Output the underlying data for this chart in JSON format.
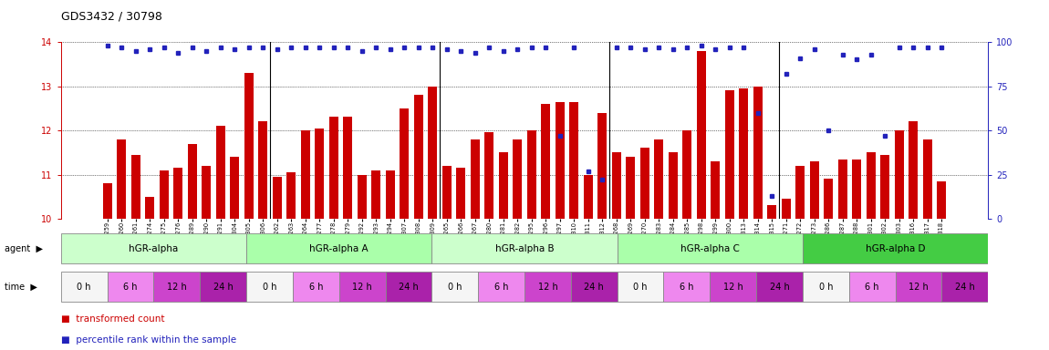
{
  "title": "GDS3432 / 30798",
  "x_labels": [
    "GSM154259",
    "GSM154260",
    "GSM154261",
    "GSM154274",
    "GSM154275",
    "GSM154276",
    "GSM154289",
    "GSM154290",
    "GSM154291",
    "GSM154304",
    "GSM154305",
    "GSM154306",
    "GSM154262",
    "GSM154263",
    "GSM154264",
    "GSM154277",
    "GSM154278",
    "GSM154279",
    "GSM154292",
    "GSM154293",
    "GSM154294",
    "GSM154307",
    "GSM154308",
    "GSM154309",
    "GSM154265",
    "GSM154266",
    "GSM154267",
    "GSM154280",
    "GSM154281",
    "GSM154282",
    "GSM154295",
    "GSM154296",
    "GSM154297",
    "GSM154310",
    "GSM154311",
    "GSM154312",
    "GSM154268",
    "GSM154269",
    "GSM154270",
    "GSM154283",
    "GSM154284",
    "GSM154285",
    "GSM154298",
    "GSM154299",
    "GSM154300",
    "GSM154313",
    "GSM154314",
    "GSM154315",
    "GSM154271",
    "GSM154272",
    "GSM154273",
    "GSM154286",
    "GSM154287",
    "GSM154288",
    "GSM154301",
    "GSM154302",
    "GSM154303",
    "GSM154316",
    "GSM154317",
    "GSM154318"
  ],
  "bar_values": [
    10.8,
    11.8,
    11.45,
    10.5,
    11.1,
    11.15,
    11.7,
    11.2,
    12.1,
    11.4,
    13.3,
    12.2,
    10.95,
    11.05,
    12.0,
    12.05,
    12.3,
    12.3,
    11.0,
    11.1,
    11.1,
    12.5,
    12.8,
    13.0,
    11.2,
    11.15,
    11.8,
    11.95,
    11.5,
    11.8,
    12.0,
    12.6,
    12.65,
    12.65,
    11.0,
    12.4,
    11.5,
    11.4,
    11.6,
    11.8,
    11.5,
    12.0,
    13.8,
    11.3,
    12.9,
    12.95,
    13.0,
    10.3,
    10.45,
    11.2,
    11.3,
    10.9,
    11.35,
    11.35,
    11.5,
    11.45,
    12.0,
    12.2,
    11.8,
    10.85
  ],
  "percentile_values": [
    98,
    97,
    95,
    96,
    97,
    94,
    97,
    95,
    97,
    96,
    97,
    97,
    96,
    97,
    97,
    97,
    97,
    97,
    95,
    97,
    96,
    97,
    97,
    97,
    96,
    95,
    94,
    97,
    95,
    96,
    97,
    97,
    47,
    97,
    27,
    22,
    97,
    97,
    96,
    97,
    96,
    97,
    98,
    96,
    97,
    97,
    60,
    13,
    82,
    91,
    96,
    50,
    93,
    90,
    93,
    47,
    97,
    97,
    97,
    97
  ],
  "ymin": 10,
  "ymax": 14,
  "yticks_left": [
    10,
    11,
    12,
    13,
    14
  ],
  "yticks_right": [
    0,
    25,
    50,
    75,
    100
  ],
  "bar_color": "#cc0000",
  "dot_color": "#2222bb",
  "agent_groups": [
    {
      "label": "hGR-alpha",
      "start": 0,
      "end": 12
    },
    {
      "label": "hGR-alpha A",
      "start": 12,
      "end": 24
    },
    {
      "label": "hGR-alpha B",
      "start": 24,
      "end": 36
    },
    {
      "label": "hGR-alpha C",
      "start": 36,
      "end": 48
    },
    {
      "label": "hGR-alpha D",
      "start": 48,
      "end": 60
    }
  ],
  "agent_colors": [
    "#ccffcc",
    "#aaffaa",
    "#ccffcc",
    "#aaffaa",
    "#44cc44"
  ],
  "time_labels": [
    "0 h",
    "6 h",
    "12 h",
    "24 h"
  ],
  "time_colors": [
    "#f5f5f5",
    "#ee88ee",
    "#cc44cc",
    "#aa22aa"
  ],
  "block_size": 3,
  "fig_width": 11.5,
  "fig_height": 3.84,
  "dpi": 100
}
